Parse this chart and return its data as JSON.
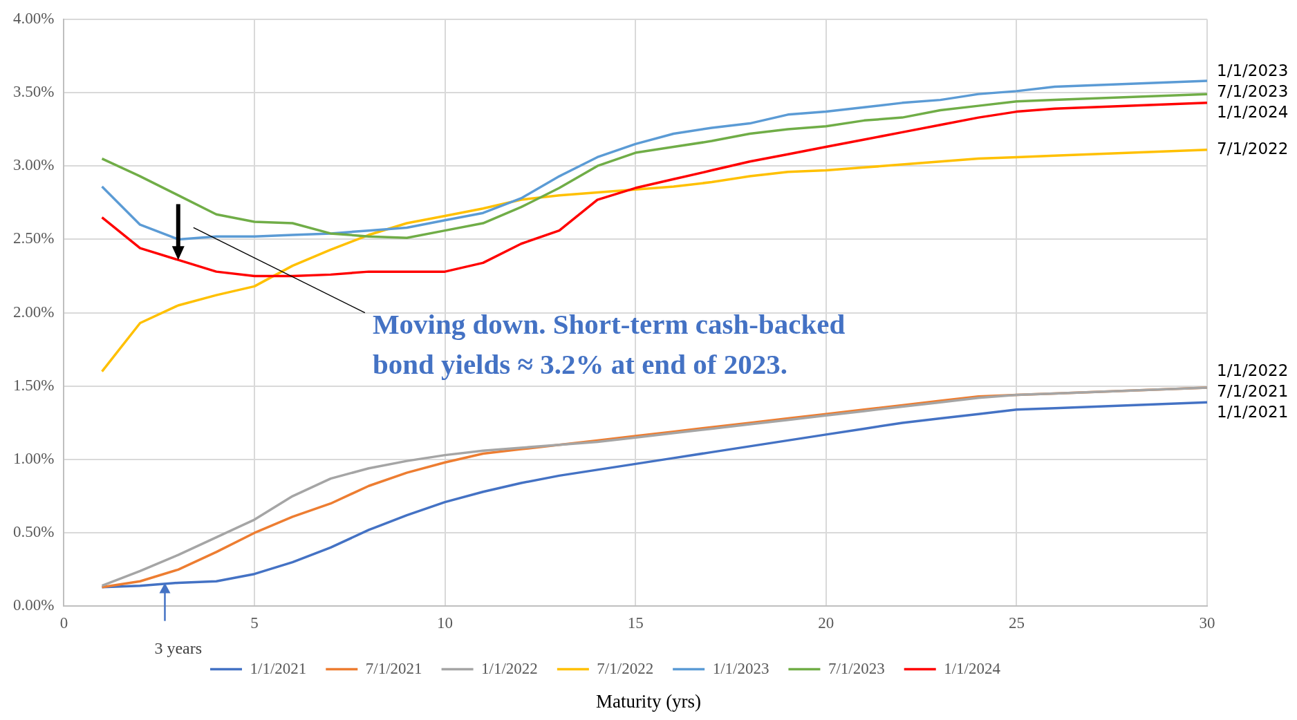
{
  "chart_data": {
    "type": "line",
    "xlabel": "Maturity (yrs)",
    "xlim": [
      0,
      30
    ],
    "xticks": [
      0,
      5,
      10,
      15,
      20,
      25,
      30
    ],
    "ylim": [
      0,
      4
    ],
    "yticks": [
      {
        "value": 0,
        "label": "0.00%"
      },
      {
        "value": 0.5,
        "label": "0.50%"
      },
      {
        "value": 1,
        "label": "1.00%"
      },
      {
        "value": 1.5,
        "label": "1.50%"
      },
      {
        "value": 2,
        "label": "2.00%"
      },
      {
        "value": 2.5,
        "label": "2.50%"
      },
      {
        "value": 3,
        "label": "3.00%"
      },
      {
        "value": 3.5,
        "label": "3.50%"
      },
      {
        "value": 4,
        "label": "4.00%"
      }
    ],
    "x": [
      1,
      2,
      3,
      4,
      5,
      6,
      7,
      8,
      9,
      10,
      11,
      12,
      13,
      14,
      15,
      16,
      17,
      18,
      19,
      20,
      21,
      22,
      23,
      24,
      25,
      26,
      30
    ],
    "series": [
      {
        "name": "1/1/2021",
        "color": "#4472c4",
        "values": [
          0.13,
          0.14,
          0.16,
          0.17,
          0.22,
          0.3,
          0.4,
          0.52,
          0.62,
          0.71,
          0.78,
          0.84,
          0.89,
          0.93,
          0.97,
          1.01,
          1.05,
          1.09,
          1.13,
          1.17,
          1.21,
          1.25,
          1.28,
          1.31,
          1.34,
          1.35,
          1.39
        ]
      },
      {
        "name": "7/1/2021",
        "color": "#ed7d31",
        "values": [
          0.13,
          0.17,
          0.25,
          0.37,
          0.5,
          0.61,
          0.7,
          0.82,
          0.91,
          0.98,
          1.04,
          1.07,
          1.1,
          1.13,
          1.16,
          1.19,
          1.22,
          1.25,
          1.28,
          1.31,
          1.34,
          1.37,
          1.4,
          1.43,
          1.44,
          1.45,
          1.49
        ]
      },
      {
        "name": "1/1/2022",
        "color": "#a5a5a5",
        "values": [
          0.14,
          0.24,
          0.35,
          0.47,
          0.59,
          0.75,
          0.87,
          0.94,
          0.99,
          1.03,
          1.06,
          1.08,
          1.1,
          1.12,
          1.15,
          1.18,
          1.21,
          1.24,
          1.27,
          1.3,
          1.33,
          1.36,
          1.39,
          1.42,
          1.44,
          1.45,
          1.49
        ]
      },
      {
        "name": "7/1/2022",
        "color": "#ffc000",
        "values": [
          1.6,
          1.93,
          2.05,
          2.12,
          2.18,
          2.32,
          2.43,
          2.53,
          2.61,
          2.66,
          2.71,
          2.77,
          2.8,
          2.82,
          2.84,
          2.86,
          2.89,
          2.93,
          2.96,
          2.97,
          2.99,
          3.01,
          3.03,
          3.05,
          3.06,
          3.07,
          3.11
        ]
      },
      {
        "name": "1/1/2023",
        "color": "#5b9bd5",
        "values": [
          2.86,
          2.6,
          2.5,
          2.52,
          2.52,
          2.53,
          2.54,
          2.56,
          2.58,
          2.63,
          2.68,
          2.78,
          2.93,
          3.06,
          3.15,
          3.22,
          3.26,
          3.29,
          3.35,
          3.37,
          3.4,
          3.43,
          3.45,
          3.49,
          3.51,
          3.54,
          3.58
        ]
      },
      {
        "name": "7/1/2023",
        "color": "#70ad47",
        "values": [
          3.05,
          2.93,
          2.8,
          2.67,
          2.62,
          2.61,
          2.54,
          2.52,
          2.51,
          2.56,
          2.61,
          2.72,
          2.85,
          3.0,
          3.09,
          3.13,
          3.17,
          3.22,
          3.25,
          3.27,
          3.31,
          3.33,
          3.38,
          3.41,
          3.44,
          3.45,
          3.49
        ]
      },
      {
        "name": "1/1/2024",
        "color": "#ff0000",
        "values": [
          2.65,
          2.44,
          2.36,
          2.28,
          2.25,
          2.25,
          2.26,
          2.28,
          2.28,
          2.28,
          2.34,
          2.47,
          2.56,
          2.77,
          2.85,
          2.91,
          2.97,
          3.03,
          3.08,
          3.13,
          3.18,
          3.23,
          3.28,
          3.33,
          3.37,
          3.39,
          3.43
        ]
      }
    ],
    "annotations": [
      "Moving down.  Short-term cash-backed bond yields ≈ 3.2% at end of 2023.",
      "3 years"
    ],
    "grid": true,
    "legend": "bottom",
    "marker": "none",
    "line_style": "solid"
  }
}
